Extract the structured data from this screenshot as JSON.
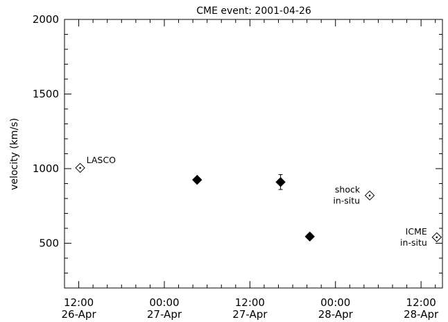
{
  "chart_data": {
    "type": "scatter",
    "title": "CME event: 2001-04-26",
    "xlabel": "",
    "ylabel": "velocity (km/s)",
    "x_axis": {
      "type": "time",
      "range": [
        "2001-04-26T10:00",
        "2001-04-28T15:00"
      ],
      "ticks": [
        {
          "at": "2001-04-26T12:00",
          "time": "12:00",
          "date": "26-Apr"
        },
        {
          "at": "2001-04-27T00:00",
          "time": "00:00",
          "date": "27-Apr"
        },
        {
          "at": "2001-04-27T12:00",
          "time": "12:00",
          "date": "27-Apr"
        },
        {
          "at": "2001-04-28T00:00",
          "time": "00:00",
          "date": "28-Apr"
        },
        {
          "at": "2001-04-28T12:00",
          "time": "12:00",
          "date": "28-Apr"
        }
      ],
      "minor_tick_hours": 2
    },
    "y_axis": {
      "range": [
        200,
        2000
      ],
      "ticks": [
        500,
        1000,
        1500,
        2000
      ],
      "minor_step": 100
    },
    "grid": false,
    "points": [
      {
        "x": "2001-04-26T12:12",
        "y": 1005,
        "marker": "diamond-open-dot",
        "label_lines": [
          "LASCO"
        ],
        "label_side": "right"
      },
      {
        "x": "2001-04-27T04:36",
        "y": 925,
        "marker": "diamond-filled"
      },
      {
        "x": "2001-04-27T16:18",
        "y": 910,
        "marker": "diamond-filled",
        "error": [
          860,
          960
        ]
      },
      {
        "x": "2001-04-27T20:24",
        "y": 545,
        "marker": "diamond-filled"
      },
      {
        "x": "2001-04-28T04:48",
        "y": 820,
        "marker": "diamond-open-dot",
        "label_lines": [
          "shock",
          "in-situ"
        ],
        "label_side": "left"
      },
      {
        "x": "2001-04-28T14:12",
        "y": 540,
        "marker": "diamond-open-dot",
        "label_lines": [
          "ICME",
          "in-situ"
        ],
        "label_side": "left"
      }
    ]
  }
}
